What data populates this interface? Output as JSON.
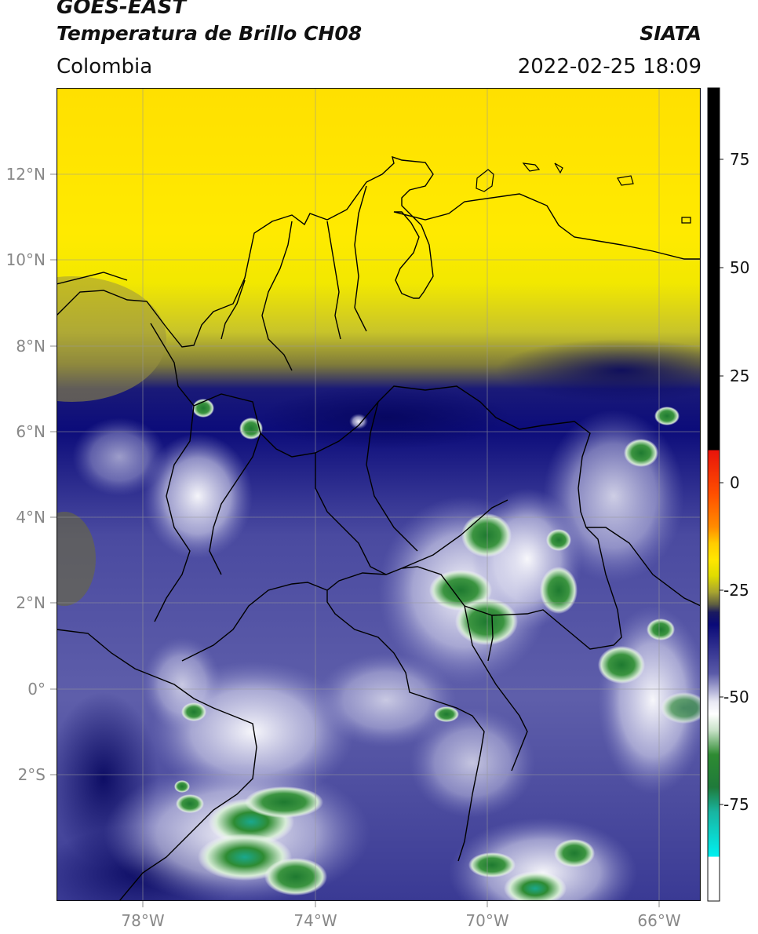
{
  "header": {
    "satellite": "GOES-EAST",
    "product": "Temperatura de Brillo CH08",
    "organization": "SIATA",
    "region": "Colombia",
    "timestamp": "2022-02-25 18:09"
  },
  "map": {
    "lon_labels": [
      "78°W",
      "74°W",
      "70°W",
      "66°W"
    ],
    "lat_labels": [
      "12°N",
      "10°N",
      "8°N",
      "6°N",
      "4°N",
      "2°N",
      "0°",
      "2°S"
    ]
  },
  "colorbar": {
    "tick_labels": [
      "75",
      "50",
      "25",
      "0",
      "-25",
      "-50",
      "-75"
    ],
    "colors": {
      "black": "#000000",
      "red": "#e8140a",
      "orange": "#ff8c00",
      "yellow": "#ffe600",
      "olive": "#8c8c2a",
      "navy": "#0a0a78",
      "slate": "#5a5aa8",
      "white": "#ffffff",
      "green": "#2e8b32",
      "teal": "#19b4a0",
      "cyan": "#00f0f0"
    }
  }
}
